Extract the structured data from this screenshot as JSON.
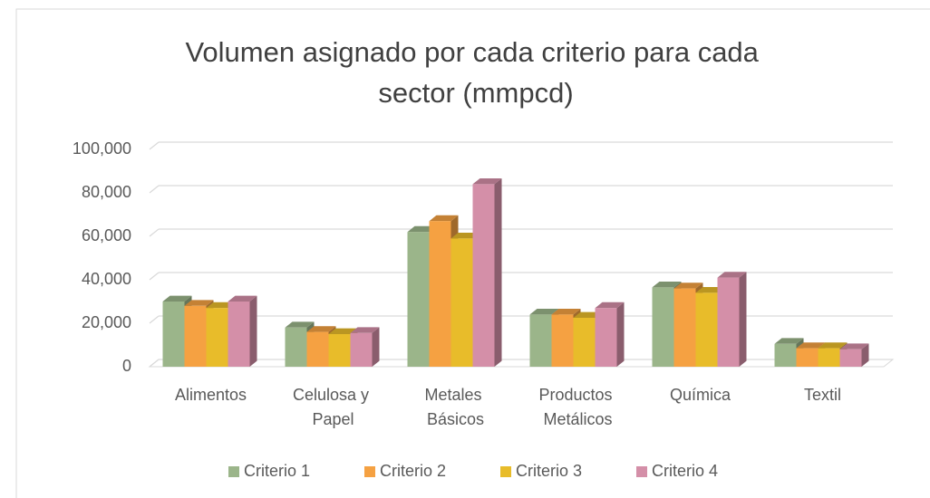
{
  "chart_data": {
    "type": "bar3d",
    "title": "Volumen asignado por cada criterio para cada sector (mmpcd)",
    "categories": [
      "Alimentos",
      "Celulosa y Papel",
      "Metales Básicos",
      "Productos Metálicos",
      "Química",
      "Textil"
    ],
    "series": [
      {
        "name": "Criterio 1",
        "color": "#9bb58a",
        "values": [
          30000,
          18000,
          62000,
          24000,
          36500,
          10500
        ]
      },
      {
        "name": "Criterio 2",
        "color": "#f5a142",
        "values": [
          28000,
          16000,
          67000,
          24000,
          36000,
          8500
        ]
      },
      {
        "name": "Criterio 3",
        "color": "#e8bc2a",
        "values": [
          27000,
          15000,
          59000,
          22500,
          34000,
          8500
        ]
      },
      {
        "name": "Criterio 4",
        "color": "#d48fa8",
        "values": [
          30000,
          15500,
          84000,
          27000,
          41000,
          8000
        ]
      }
    ],
    "ylim": [
      0,
      100000
    ],
    "yticks": [
      0,
      {
        "value": 20000,
        "label": "20,000"
      },
      {
        "value": 40000,
        "label": "40,000"
      },
      {
        "value": 60000,
        "label": "60,000"
      },
      {
        "value": 80000,
        "label": "80,000"
      },
      {
        "value": 100000,
        "label": "100,000"
      }
    ],
    "grid": true,
    "legend": "bottom"
  }
}
